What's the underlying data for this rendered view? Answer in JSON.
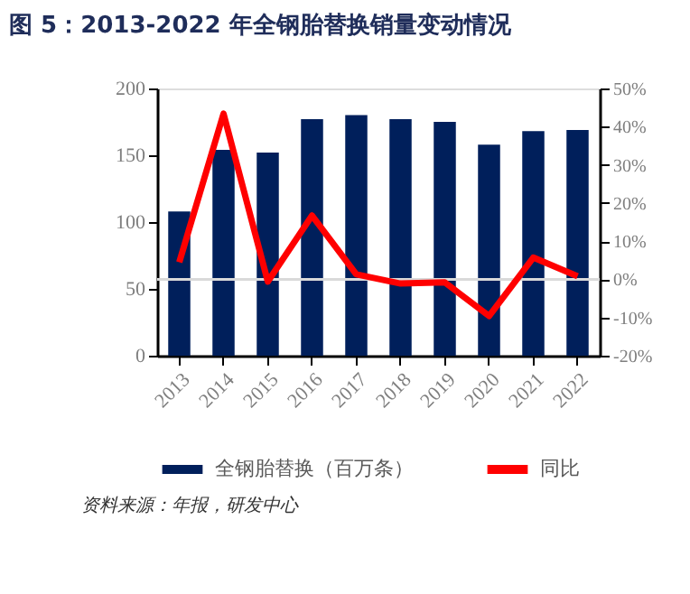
{
  "chart_data": {
    "type": "bar",
    "title": "图 5：2013-2022 年全钢胎替换销量变动情况",
    "categories": [
      "2013",
      "2014",
      "2015",
      "2016",
      "2017",
      "2018",
      "2019",
      "2020",
      "2021",
      "2022"
    ],
    "series": [
      {
        "name": "全钢胎替换（百万条）",
        "type": "bar",
        "color": "#001f5b",
        "values": [
          108,
          154,
          152,
          177,
          180,
          177,
          175,
          158,
          168,
          169
        ]
      },
      {
        "name": "同比",
        "type": "line",
        "axis": "y2",
        "color": "#ff0000",
        "values": [
          4.5,
          43.4,
          -0.6,
          16.7,
          1.3,
          -1.1,
          -0.8,
          -9.6,
          5.7,
          0.8
        ]
      }
    ],
    "ylim": [
      0,
      200
    ],
    "yticks": [
      0,
      50,
      100,
      150,
      200
    ],
    "y2lim": [
      -20,
      50
    ],
    "y2ticks": [
      {
        "value": -20,
        "label": "-20%"
      },
      {
        "value": -10,
        "label": "-10%"
      },
      {
        "value": 0,
        "label": "0%"
      },
      {
        "value": 10,
        "label": "10%"
      },
      {
        "value": 20,
        "label": "20%"
      },
      {
        "value": 30,
        "label": "30%"
      },
      {
        "value": 40,
        "label": "40%"
      },
      {
        "value": 50,
        "label": "50%"
      }
    ],
    "ref_lines": [
      {
        "axis": "y2",
        "value": 0,
        "color": "#d9d9d9"
      }
    ],
    "grid": false,
    "legend": "bottom",
    "marker": "none",
    "line_style": "solid",
    "annotations": [
      "资料来源：年报，研发中心"
    ]
  }
}
